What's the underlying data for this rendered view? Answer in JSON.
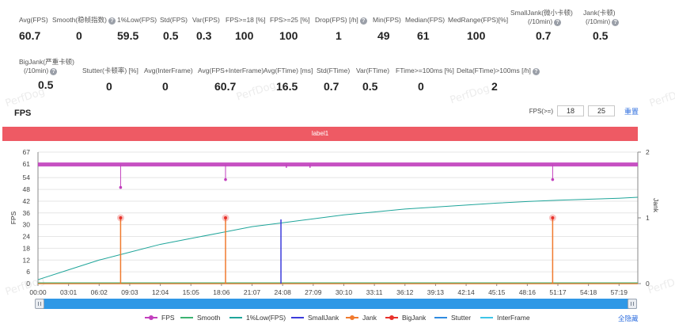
{
  "stats_row1": [
    {
      "label": "Avg(FPS)",
      "value": "60.7",
      "help": false
    },
    {
      "label": "Smooth(稳帧指数)",
      "value": "0",
      "help": true
    },
    {
      "label": "1%Low(FPS)",
      "value": "59.5",
      "help": false
    },
    {
      "label": "Std(FPS)",
      "value": "0.5",
      "help": false
    },
    {
      "label": "Var(FPS)",
      "value": "0.3",
      "help": false
    },
    {
      "label": "FPS>=18 [%]",
      "value": "100",
      "help": false
    },
    {
      "label": "FPS>=25 [%]",
      "value": "100",
      "help": false
    },
    {
      "label": "Drop(FPS) [/h]",
      "value": "1",
      "help": true
    },
    {
      "label": "Min(FPS)",
      "value": "49",
      "help": false
    },
    {
      "label": "Median(FPS)",
      "value": "61",
      "help": false
    },
    {
      "label": "MedRange(FPS)[%]",
      "value": "100",
      "help": false
    },
    {
      "label": "SmallJank(微小卡顿)",
      "label2": "(/10min)",
      "value": "0.7",
      "help": true
    },
    {
      "label": "Jank(卡顿)",
      "label2": "(/10min)",
      "value": "0.5",
      "help": true
    }
  ],
  "stats_row2": [
    {
      "label": "BigJank(严重卡顿)",
      "label2": "(/10min)",
      "value": "0.5",
      "help": true
    },
    {
      "label": "Stutter(卡顿率) [%]",
      "value": "0",
      "help": false
    },
    {
      "label": "Avg(InterFrame)",
      "value": "0",
      "help": false
    },
    {
      "label": "Avg(FPS+InterFrame)",
      "value": "60.7",
      "help": false
    },
    {
      "label": "Avg(FTime) [ms]",
      "value": "16.5",
      "help": false
    },
    {
      "label": "Std(FTime)",
      "value": "0.7",
      "help": false
    },
    {
      "label": "Var(FTime)",
      "value": "0.5",
      "help": false
    },
    {
      "label": "FTime>=100ms [%]",
      "value": "0",
      "help": false
    },
    {
      "label": "Delta(FTime)>100ms [/h]",
      "value": "2",
      "help": true
    }
  ],
  "watermark": "PerfDog",
  "panel": {
    "title": "FPS",
    "threshold_label": "FPS(>=)",
    "threshold_1": "18",
    "threshold_2": "25",
    "reset_label": "重置",
    "label_bar": "label1",
    "hide_all_label": "全隐藏"
  },
  "colors": {
    "fps": "#c23fbd",
    "smooth": "#3cb371",
    "low1": "#1fa59a",
    "smalljank": "#3b3bdb",
    "jank": "#f07a2e",
    "bigjank": "#e8312b",
    "stutter": "#2f8be0",
    "interframe": "#3ec6e8",
    "accent": "#2f6fdf",
    "label_bar": "#ee5a64"
  },
  "legend": [
    {
      "name": "FPS",
      "color": "#c23fbd",
      "style": "line-dot"
    },
    {
      "name": "Smooth",
      "color": "#3cb371",
      "style": "line"
    },
    {
      "name": "1%Low(FPS)",
      "color": "#1fa59a",
      "style": "line"
    },
    {
      "name": "SmallJank",
      "color": "#3b3bdb",
      "style": "line"
    },
    {
      "name": "Jank",
      "color": "#f07a2e",
      "style": "line-dot"
    },
    {
      "name": "BigJank",
      "color": "#e8312b",
      "style": "line-dot"
    },
    {
      "name": "Stutter",
      "color": "#2f8be0",
      "style": "line"
    },
    {
      "name": "InterFrame",
      "color": "#3ec6e8",
      "style": "line"
    }
  ],
  "chart_data": {
    "type": "line",
    "xlabel": "",
    "ylabel": "FPS",
    "y2label": "Jank",
    "ylim": [
      0,
      67
    ],
    "y2lim": [
      0,
      2
    ],
    "y_ticks": [
      "0",
      "6",
      "12",
      "18",
      "24",
      "30",
      "36",
      "42",
      "48",
      "54",
      "61",
      "67"
    ],
    "y_tick_values": [
      0,
      6,
      12,
      18,
      24,
      30,
      36,
      42,
      48,
      54,
      61,
      67
    ],
    "y2_ticks": [
      "0",
      "1",
      "2"
    ],
    "x_ticks": [
      "00:00",
      "03:01",
      "06:02",
      "09:03",
      "12:04",
      "15:05",
      "18:06",
      "21:07",
      "24:08",
      "27:09",
      "30:10",
      "33:11",
      "36:12",
      "39:13",
      "42:14",
      "45:15",
      "48:16",
      "51:17",
      "54:18",
      "57:19"
    ],
    "duration_seconds": 3550,
    "tick_step_seconds": 181,
    "fps_level": 60.7,
    "fps_dips": [
      {
        "time": "08:09",
        "value": 49
      },
      {
        "time": "18:30",
        "value": 53
      },
      {
        "time": "50:46",
        "value": 53
      }
    ],
    "fps_small_dips": [
      {
        "time": "24:30",
        "value": 59
      },
      {
        "time": "26:50",
        "value": 59
      }
    ],
    "jank_events": [
      {
        "time": "08:09",
        "value": 1
      },
      {
        "time": "18:30",
        "value": 1
      },
      {
        "time": "50:46",
        "value": 1
      }
    ],
    "smalljank_events": [
      {
        "time": "23:58",
        "value": 1
      }
    ],
    "low1_curve": [
      {
        "time": "00:00",
        "value": 2
      },
      {
        "time": "03:01",
        "value": 7
      },
      {
        "time": "06:02",
        "value": 12
      },
      {
        "time": "09:03",
        "value": 16
      },
      {
        "time": "12:04",
        "value": 20
      },
      {
        "time": "15:05",
        "value": 23
      },
      {
        "time": "18:06",
        "value": 26
      },
      {
        "time": "21:07",
        "value": 29
      },
      {
        "time": "24:08",
        "value": 31
      },
      {
        "time": "27:09",
        "value": 33
      },
      {
        "time": "30:10",
        "value": 35
      },
      {
        "time": "33:11",
        "value": 36.5
      },
      {
        "time": "36:12",
        "value": 38
      },
      {
        "time": "39:13",
        "value": 39
      },
      {
        "time": "42:14",
        "value": 40
      },
      {
        "time": "45:15",
        "value": 41
      },
      {
        "time": "48:16",
        "value": 41.8
      },
      {
        "time": "51:17",
        "value": 42.5
      },
      {
        "time": "54:18",
        "value": 43
      },
      {
        "time": "57:19",
        "value": 43.5
      },
      {
        "time": "59:10",
        "value": 44
      }
    ]
  }
}
